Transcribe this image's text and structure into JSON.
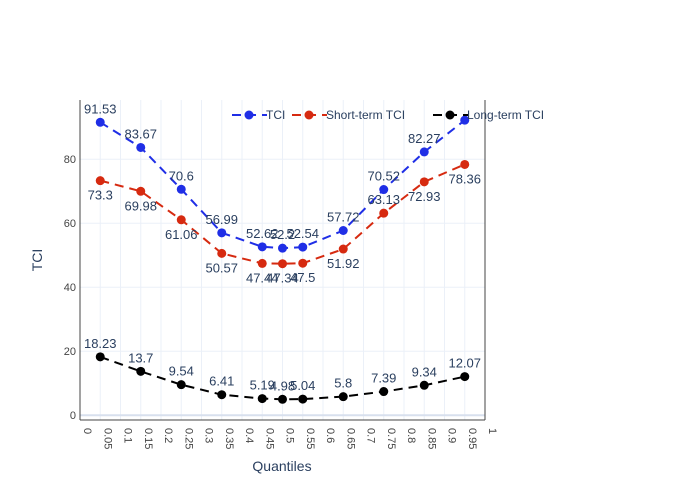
{
  "chart_data": {
    "type": "line",
    "xlabel": "Quantiles",
    "ylabel": "TCI",
    "x": [
      0.05,
      0.15,
      0.25,
      0.35,
      0.45,
      0.5,
      0.55,
      0.65,
      0.75,
      0.85,
      0.95
    ],
    "xlim": [
      0,
      1
    ],
    "ylim": [
      -1.5,
      98.5
    ],
    "x_ticks": [
      "0",
      "0.05",
      "0.1",
      "0.15",
      "0.2",
      "0.25",
      "0.3",
      "0.35",
      "0.4",
      "0.45",
      "0.5",
      "0.55",
      "0.6",
      "0.65",
      "0.7",
      "0.75",
      "0.8",
      "0.85",
      "0.9",
      "0.95",
      "1"
    ],
    "y_ticks": [
      "0",
      "20",
      "40",
      "60",
      "80"
    ],
    "grid": true,
    "legend_position": "top-right",
    "series": [
      {
        "name": "TCI",
        "color": "#1f2ee6",
        "values": [
          91.53,
          83.67,
          70.6,
          56.99,
          52.62,
          52.2,
          52.54,
          57.72,
          70.52,
          82.27,
          92.2
        ],
        "labels": [
          "91.53",
          "83.67",
          "70.6",
          "56.99",
          "52.62",
          "52.2",
          "52.54",
          "57.72",
          "70.52",
          "82.27",
          ""
        ]
      },
      {
        "name": "Short-term TCI",
        "color": "#d62a10",
        "values": [
          73.3,
          69.98,
          61.06,
          50.57,
          47.44,
          47.34,
          47.5,
          51.92,
          63.13,
          72.93,
          78.36
        ],
        "labels": [
          "73.3",
          "69.98",
          "61.06",
          "50.57",
          "47.44",
          "47.34",
          "47.5",
          "51.92",
          "63.13",
          "72.93",
          "78.36"
        ]
      },
      {
        "name": "Long-term TCI",
        "color": "#000000",
        "values": [
          18.23,
          13.7,
          9.54,
          6.41,
          5.19,
          4.98,
          5.04,
          5.8,
          7.39,
          9.34,
          12.07
        ],
        "labels": [
          "18.23",
          "13.7",
          "9.54",
          "6.41",
          "5.19",
          "4.98",
          "5.04",
          "5.8",
          "7.39",
          "9.34",
          "12.07"
        ]
      }
    ]
  }
}
